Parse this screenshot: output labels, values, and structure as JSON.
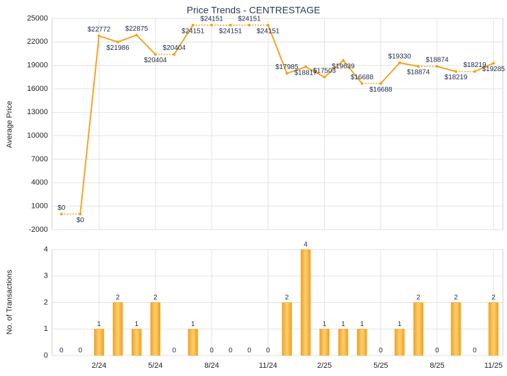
{
  "chart_data": [
    {
      "type": "line",
      "title": "Price Trends - CENTRESTAGE",
      "ylabel": "Average Price",
      "categories": [
        null,
        null,
        "2/24",
        null,
        null,
        "5/24",
        null,
        null,
        "8/24",
        null,
        null,
        "11/24",
        null,
        null,
        "2/25",
        null,
        null,
        "5/25",
        null,
        null,
        "8/25",
        null,
        null,
        "11/25"
      ],
      "series": [
        {
          "name": "Average Price",
          "color": "#f5a31a",
          "values": [
            0,
            0,
            22772,
            21986,
            22875,
            20404,
            20404,
            24151,
            24151,
            24151,
            24151,
            24151,
            17985,
            18817,
            17503,
            19639,
            16688,
            16688,
            19330,
            18874,
            18874,
            18219,
            18219,
            19285
          ],
          "value_labels": [
            "$0",
            "$0",
            "$22772",
            "$21986",
            "$22875",
            "$20404",
            "$20404",
            "$24151",
            "$24151",
            "$24151",
            "$24151",
            "$24151",
            "$17985",
            "$18817",
            "$17503",
            "$19639",
            "$16688",
            "$16688",
            "$19330",
            "$18874",
            "$18874",
            "$18219",
            "$18219",
            "$19285"
          ]
        }
      ],
      "ylim": [
        -2000,
        25000
      ],
      "yticks": [
        -2000,
        1000,
        4000,
        7000,
        10000,
        13000,
        16000,
        19000,
        22000,
        25000
      ],
      "grid": true
    },
    {
      "type": "bar",
      "ylabel": "No. of Transactions",
      "categories": [
        null,
        null,
        "2/24",
        null,
        null,
        "5/24",
        null,
        null,
        "8/24",
        null,
        null,
        "11/24",
        null,
        null,
        "2/25",
        null,
        null,
        "5/25",
        null,
        null,
        "8/25",
        null,
        null,
        "11/25"
      ],
      "values": [
        0,
        0,
        1,
        2,
        1,
        2,
        0,
        1,
        0,
        0,
        0,
        0,
        2,
        4,
        1,
        1,
        1,
        0,
        1,
        2,
        0,
        2,
        0,
        2
      ],
      "color": "#f5a31a",
      "ylim": [
        0,
        4
      ],
      "yticks": [
        0,
        1,
        2,
        3,
        4
      ],
      "grid": true
    }
  ]
}
